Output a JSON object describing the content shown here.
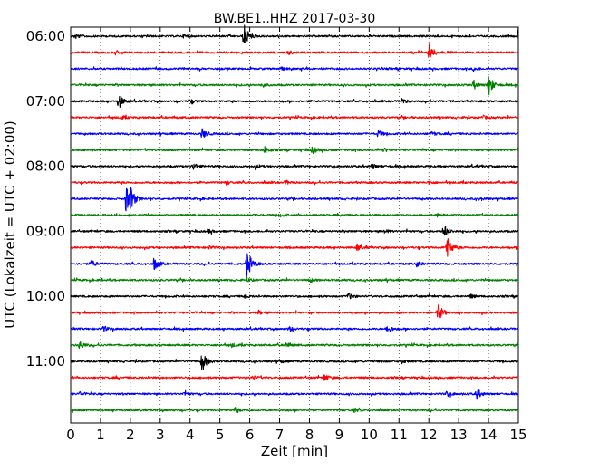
{
  "chart_data": {
    "type": "line",
    "title": "BW.BE1..HHZ 2017-03-30",
    "xlabel": "Zeit  [min]",
    "ylabel": "UTC (Lokalzeit = UTC + 02:00)",
    "xlim": [
      0,
      15
    ],
    "x_ticks": [
      "0",
      "1",
      "2",
      "3",
      "4",
      "5",
      "6",
      "7",
      "8",
      "9",
      "10",
      "11",
      "12",
      "13",
      "14",
      "15"
    ],
    "y_tick_labels": [
      "06:00",
      "07:00",
      "08:00",
      "09:00",
      "10:00",
      "11:00"
    ],
    "y_tick_rows": [
      0,
      4,
      8,
      12,
      16,
      20
    ],
    "grid": "vertical dotted",
    "trace_colors": [
      "#000000",
      "#ff0000",
      "#0000ff",
      "#008000"
    ],
    "rows": [
      {
        "start": "06:00",
        "events": [
          [
            0.15,
            3
          ],
          [
            5.8,
            14
          ],
          [
            15.0,
            13
          ],
          [
            3.8,
            2
          ]
        ]
      },
      {
        "start": "06:15",
        "events": [
          [
            12.0,
            11
          ],
          [
            1.5,
            2
          ],
          [
            7.3,
            2
          ]
        ]
      },
      {
        "start": "06:30",
        "events": [
          [
            7.0,
            2
          ],
          [
            13.5,
            2
          ]
        ]
      },
      {
        "start": "06:45",
        "events": [
          [
            14.0,
            13
          ],
          [
            13.5,
            5
          ],
          [
            6.4,
            2
          ]
        ]
      },
      {
        "start": "07:00",
        "events": [
          [
            1.6,
            9
          ],
          [
            4.0,
            2
          ],
          [
            11.1,
            3
          ]
        ]
      },
      {
        "start": "07:15",
        "events": [
          [
            1.7,
            2
          ],
          [
            13.8,
            2
          ]
        ]
      },
      {
        "start": "07:30",
        "events": [
          [
            4.4,
            6
          ],
          [
            10.3,
            4
          ],
          [
            12.1,
            2
          ]
        ]
      },
      {
        "start": "07:45",
        "events": [
          [
            6.5,
            4
          ],
          [
            8.1,
            4
          ],
          [
            10.5,
            2
          ]
        ]
      },
      {
        "start": "08:00",
        "events": [
          [
            4.1,
            4
          ],
          [
            10.1,
            3
          ],
          [
            6.2,
            2
          ]
        ]
      },
      {
        "start": "08:15",
        "events": [
          [
            7.2,
            2
          ],
          [
            12.0,
            2
          ],
          [
            5.2,
            2
          ]
        ]
      },
      {
        "start": "08:30",
        "events": [
          [
            1.85,
            16
          ],
          [
            2.0,
            10
          ],
          [
            13.7,
            2
          ]
        ]
      },
      {
        "start": "08:45",
        "events": [
          [
            7.0,
            2
          ],
          [
            12.3,
            2
          ]
        ]
      },
      {
        "start": "09:00",
        "events": [
          [
            12.5,
            8
          ],
          [
            4.6,
            2
          ],
          [
            10.5,
            2
          ]
        ]
      },
      {
        "start": "09:15",
        "events": [
          [
            12.6,
            16
          ],
          [
            9.6,
            4
          ],
          [
            4.6,
            2
          ]
        ]
      },
      {
        "start": "09:30",
        "events": [
          [
            5.9,
            18
          ],
          [
            2.8,
            7
          ],
          [
            0.7,
            4
          ],
          [
            11.6,
            3
          ]
        ]
      },
      {
        "start": "09:45",
        "events": [
          [
            5.9,
            2
          ],
          [
            8.0,
            2
          ]
        ]
      },
      {
        "start": "10:00",
        "events": [
          [
            9.3,
            4
          ],
          [
            5.8,
            2
          ],
          [
            13.4,
            2
          ]
        ]
      },
      {
        "start": "10:15",
        "events": [
          [
            12.3,
            11
          ],
          [
            6.3,
            2
          ]
        ]
      },
      {
        "start": "10:30",
        "events": [
          [
            10.6,
            5
          ],
          [
            7.3,
            3
          ],
          [
            1.1,
            3
          ]
        ]
      },
      {
        "start": "10:45",
        "events": [
          [
            0.3,
            5
          ],
          [
            7.2,
            3
          ],
          [
            5.4,
            2
          ]
        ]
      },
      {
        "start": "11:00",
        "events": [
          [
            4.4,
            12
          ],
          [
            7.0,
            2
          ],
          [
            11.1,
            2
          ]
        ]
      },
      {
        "start": "11:15",
        "events": [
          [
            8.5,
            4
          ],
          [
            6.1,
            2
          ]
        ]
      },
      {
        "start": "11:30",
        "events": [
          [
            13.6,
            6
          ],
          [
            12.6,
            3
          ],
          [
            0.3,
            2
          ],
          [
            3.8,
            2
          ]
        ]
      },
      {
        "start": "11:45",
        "events": [
          [
            5.5,
            3
          ],
          [
            9.5,
            2
          ]
        ]
      }
    ]
  }
}
